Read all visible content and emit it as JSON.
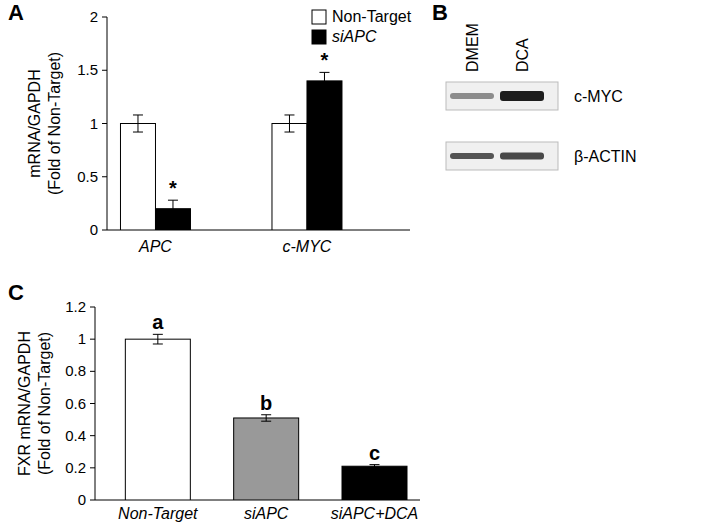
{
  "chart_data": [
    {
      "type": "bar",
      "title": "A",
      "y_label": [
        "mRNA/GAPDH",
        "(Fold of Non-Target)"
      ],
      "categories": [
        "APC",
        "c-MYC"
      ],
      "series": [
        {
          "name": "Non-Target",
          "color": "#ffffff",
          "values": [
            1,
            1
          ],
          "errors": [
            0.08,
            0.08
          ]
        },
        {
          "name": "siAPC",
          "color": "#000000",
          "values": [
            0.2,
            1.4
          ],
          "errors": [
            0.08,
            0.08
          ],
          "annotations": [
            "*",
            "*"
          ]
        }
      ],
      "ylim": [
        0,
        2
      ],
      "yticks": [
        0,
        0.5,
        1,
        1.5,
        2
      ],
      "grid": false,
      "legend": "top right"
    },
    {
      "type": "bar",
      "title": "C",
      "y_label": [
        "FXR mRNA/GAPDH",
        "(Fold of Non-Target)"
      ],
      "categories": [
        "Non-Target",
        "siAPC",
        "siAPC+DCA"
      ],
      "values": [
        1,
        0.51,
        0.21
      ],
      "errors": [
        0.03,
        0.02,
        0.01
      ],
      "colors": [
        "#ffffff",
        "#999999",
        "#000000"
      ],
      "annotations": [
        "a",
        "b",
        "c"
      ],
      "ylim": [
        0,
        1.2
      ],
      "yticks": [
        0,
        0.2,
        0.4,
        0.6,
        0.8,
        1,
        1.2
      ],
      "grid": false
    }
  ],
  "blot": {
    "title": "B",
    "lanes": [
      "DMEM",
      "DCA"
    ],
    "rows": [
      "c-MYC",
      "β-ACTIN"
    ]
  }
}
